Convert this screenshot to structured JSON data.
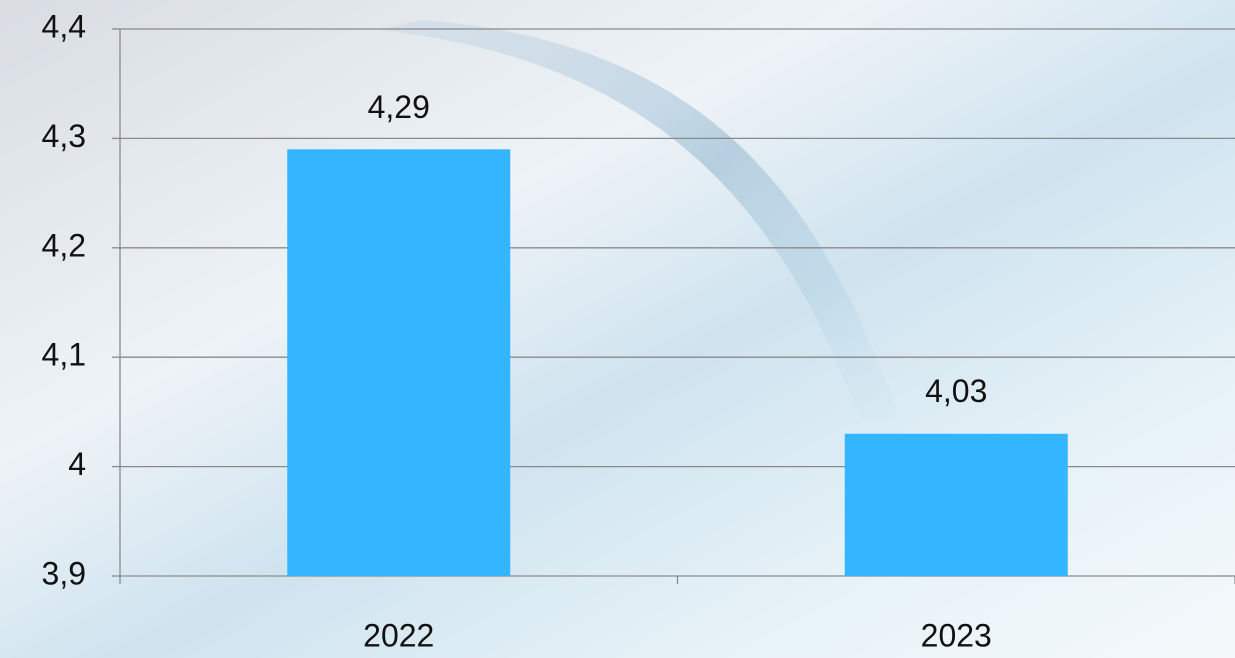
{
  "chart_data": {
    "type": "bar",
    "categories": [
      "2022",
      "2023"
    ],
    "values": [
      4.29,
      4.03
    ],
    "value_labels": [
      "4,29",
      "4,03"
    ],
    "color": "#33b5ff",
    "ylim": [
      3.9,
      4.4
    ],
    "yticks": [
      {
        "value": 3.9,
        "label": "3,9"
      },
      4,
      {
        "value": 4.1,
        "label": "4,1"
      },
      {
        "value": 4.2,
        "label": "4,2"
      },
      {
        "value": 4.3,
        "label": "4,3"
      },
      {
        "value": 4.4,
        "label": "4,4"
      }
    ],
    "grid": true
  }
}
